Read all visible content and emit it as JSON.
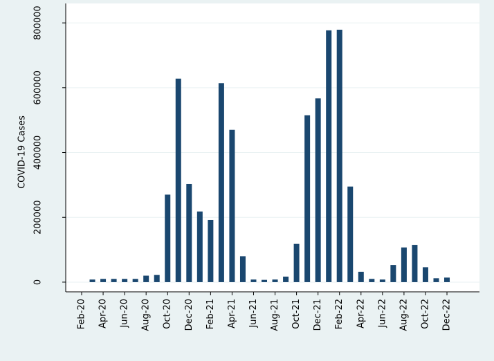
{
  "chart_data": {
    "type": "bar",
    "y_label": "COVID-19 Cases",
    "categories": [
      "Feb-20",
      null,
      "Apr-20",
      null,
      "Jun-20",
      null,
      "Aug-20",
      null,
      "Oct-20",
      null,
      "Dec-20",
      null,
      "Feb-21",
      null,
      "Apr-21",
      null,
      "Jun-21",
      null,
      "Aug-21",
      null,
      "Oct-21",
      null,
      "Dec-21",
      null,
      "Feb-22",
      null,
      "Apr-22",
      null,
      "Jun-22",
      null,
      "Aug-22",
      null,
      "Oct-22",
      null,
      "Dec-22"
    ],
    "values": [
      0,
      8000,
      10000,
      10000,
      10000,
      10000,
      20000,
      22000,
      270000,
      628000,
      303000,
      218000,
      192000,
      614000,
      470000,
      80000,
      8000,
      7000,
      8000,
      17000,
      118000,
      515000,
      567000,
      777000,
      779000,
      295000,
      32000,
      10000,
      8000,
      53000,
      107000,
      115000,
      46000,
      12000,
      14000
    ],
    "color": "#1a476f",
    "ylim": [
      -30000,
      860000
    ],
    "yticks": [
      0,
      200000,
      400000,
      600000,
      800000
    ],
    "grid": true
  }
}
